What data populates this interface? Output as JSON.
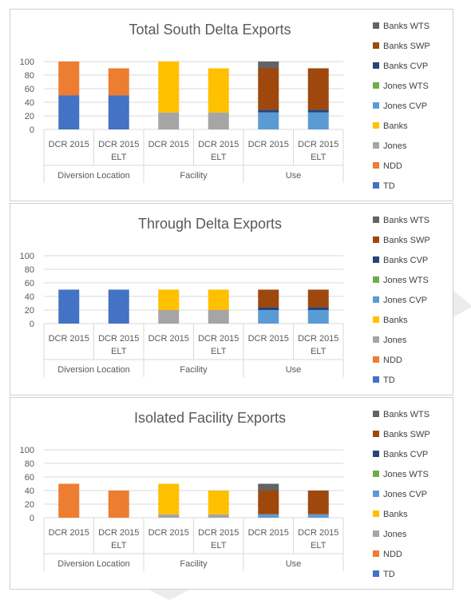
{
  "chart_data": [
    {
      "type": "bar",
      "stacked": true,
      "title": "Total South Delta Exports",
      "groups": [
        {
          "label": "Diversion Location",
          "categories": [
            "DCR 2015",
            "DCR 2015 ELT"
          ]
        },
        {
          "label": "Facility",
          "categories": [
            "DCR 2015",
            "DCR 2015 ELT"
          ]
        },
        {
          "label": "Use",
          "categories": [
            "DCR 2015",
            "DCR 2015 ELT"
          ]
        }
      ],
      "categories": [
        "DCR 2015",
        "DCR 2015 ELT",
        "DCR 2015",
        "DCR 2015 ELT",
        "DCR 2015",
        "DCR 2015 ELT"
      ],
      "ylim": [
        0,
        100
      ],
      "yticks": [
        0,
        20,
        40,
        60,
        80,
        100
      ],
      "grid": true,
      "legend_position": "right",
      "series": [
        {
          "name": "TD",
          "color": "#4472C4",
          "values": [
            50,
            50,
            0,
            0,
            0,
            0
          ]
        },
        {
          "name": "NDD",
          "color": "#ED7D31",
          "values": [
            50,
            40,
            0,
            0,
            0,
            0
          ]
        },
        {
          "name": "Jones",
          "color": "#A5A5A5",
          "values": [
            0,
            0,
            25,
            25,
            0,
            0
          ]
        },
        {
          "name": "Banks",
          "color": "#FFC000",
          "values": [
            0,
            0,
            75,
            65,
            0,
            0
          ]
        },
        {
          "name": "Jones CVP",
          "color": "#5B9BD5",
          "values": [
            0,
            0,
            0,
            0,
            25,
            25
          ]
        },
        {
          "name": "Jones WTS",
          "color": "#70AD47",
          "values": [
            0,
            0,
            0,
            0,
            0,
            0
          ]
        },
        {
          "name": "Banks CVP",
          "color": "#264478",
          "values": [
            0,
            0,
            0,
            0,
            4,
            4
          ]
        },
        {
          "name": "Banks SWP",
          "color": "#9E480E",
          "values": [
            0,
            0,
            0,
            0,
            61,
            61
          ]
        },
        {
          "name": "Banks WTS",
          "color": "#636363",
          "values": [
            0,
            0,
            0,
            0,
            10,
            0
          ]
        }
      ]
    },
    {
      "type": "bar",
      "stacked": true,
      "title": "Through Delta Exports",
      "groups": [
        {
          "label": "Diversion Location",
          "categories": [
            "DCR 2015",
            "DCR 2015 ELT"
          ]
        },
        {
          "label": "Facility",
          "categories": [
            "DCR 2015",
            "DCR 2015 ELT"
          ]
        },
        {
          "label": "Use",
          "categories": [
            "DCR 2015",
            "DCR 2015 ELT"
          ]
        }
      ],
      "categories": [
        "DCR 2015",
        "DCR 2015 ELT",
        "DCR 2015",
        "DCR 2015 ELT",
        "DCR 2015",
        "DCR 2015 ELT"
      ],
      "ylim": [
        0,
        100
      ],
      "yticks": [
        0,
        20,
        40,
        60,
        80,
        100
      ],
      "grid": true,
      "legend_position": "right",
      "series": [
        {
          "name": "TD",
          "color": "#4472C4",
          "values": [
            50,
            50,
            0,
            0,
            0,
            0
          ]
        },
        {
          "name": "NDD",
          "color": "#ED7D31",
          "values": [
            0,
            0,
            0,
            0,
            0,
            0
          ]
        },
        {
          "name": "Jones",
          "color": "#A5A5A5",
          "values": [
            0,
            0,
            20,
            20,
            0,
            0
          ]
        },
        {
          "name": "Banks",
          "color": "#FFC000",
          "values": [
            0,
            0,
            30,
            30,
            0,
            0
          ]
        },
        {
          "name": "Jones CVP",
          "color": "#5B9BD5",
          "values": [
            0,
            0,
            0,
            0,
            20,
            20
          ]
        },
        {
          "name": "Jones WTS",
          "color": "#70AD47",
          "values": [
            0,
            0,
            0,
            0,
            0,
            0
          ]
        },
        {
          "name": "Banks CVP",
          "color": "#264478",
          "values": [
            0,
            0,
            0,
            0,
            4,
            4
          ]
        },
        {
          "name": "Banks SWP",
          "color": "#9E480E",
          "values": [
            0,
            0,
            0,
            0,
            26,
            26
          ]
        },
        {
          "name": "Banks WTS",
          "color": "#636363",
          "values": [
            0,
            0,
            0,
            0,
            0,
            0
          ]
        }
      ]
    },
    {
      "type": "bar",
      "stacked": true,
      "title": "Isolated Facility Exports",
      "groups": [
        {
          "label": "Diversion Location",
          "categories": [
            "DCR 2015",
            "DCR 2015 ELT"
          ]
        },
        {
          "label": "Facility",
          "categories": [
            "DCR 2015",
            "DCR 2015 ELT"
          ]
        },
        {
          "label": "Use",
          "categories": [
            "DCR 2015",
            "DCR 2015 ELT"
          ]
        }
      ],
      "categories": [
        "DCR 2015",
        "DCR 2015 ELT",
        "DCR 2015",
        "DCR 2015 ELT",
        "DCR 2015",
        "DCR 2015 ELT"
      ],
      "ylim": [
        0,
        100
      ],
      "yticks": [
        0,
        20,
        40,
        60,
        80,
        100
      ],
      "grid": true,
      "legend_position": "right",
      "series": [
        {
          "name": "TD",
          "color": "#4472C4",
          "values": [
            0,
            0,
            0,
            0,
            0,
            0
          ]
        },
        {
          "name": "NDD",
          "color": "#ED7D31",
          "values": [
            50,
            40,
            0,
            0,
            0,
            0
          ]
        },
        {
          "name": "Jones",
          "color": "#A5A5A5",
          "values": [
            0,
            0,
            5,
            5,
            0,
            0
          ]
        },
        {
          "name": "Banks",
          "color": "#FFC000",
          "values": [
            0,
            0,
            45,
            35,
            0,
            0
          ]
        },
        {
          "name": "Jones CVP",
          "color": "#5B9BD5",
          "values": [
            0,
            0,
            0,
            0,
            5,
            5
          ]
        },
        {
          "name": "Jones WTS",
          "color": "#70AD47",
          "values": [
            0,
            0,
            0,
            0,
            0,
            0
          ]
        },
        {
          "name": "Banks CVP",
          "color": "#264478",
          "values": [
            0,
            0,
            0,
            0,
            0,
            0
          ]
        },
        {
          "name": "Banks SWP",
          "color": "#9E480E",
          "values": [
            0,
            0,
            0,
            0,
            35,
            35
          ]
        },
        {
          "name": "Banks WTS",
          "color": "#636363",
          "values": [
            0,
            0,
            0,
            0,
            10,
            0
          ]
        }
      ]
    }
  ]
}
